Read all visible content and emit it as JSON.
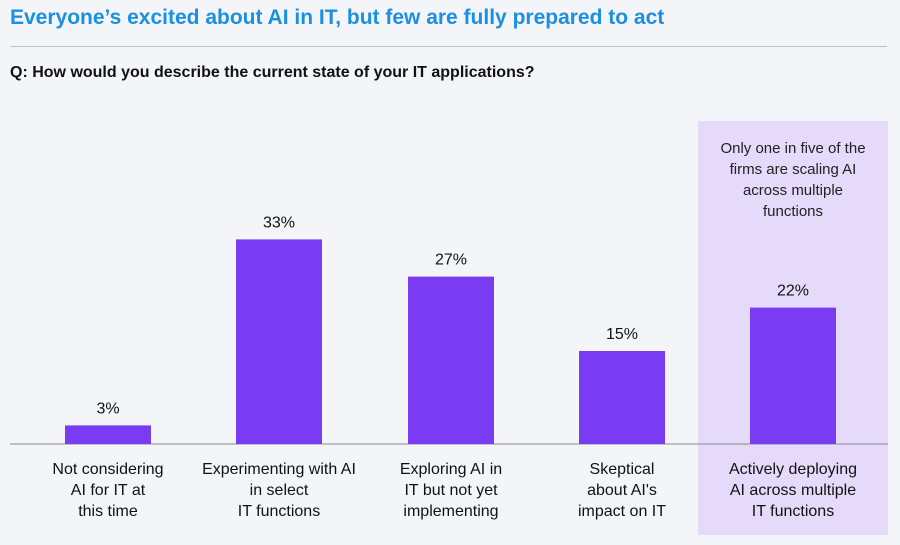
{
  "header": {
    "title": "Everyone’s excited about AI in IT, but few are fully prepared to act",
    "question": "Q: How would you describe the current state of your IT applications?"
  },
  "colors": {
    "title": "#1b8fe0",
    "bar": "#7a3cf2",
    "highlight": "#e6dafb",
    "baseline": "#8a8a8a"
  },
  "chart_data": {
    "type": "bar",
    "categories": [
      [
        "Not considering",
        "AI for IT at",
        "this time"
      ],
      [
        "Experimenting with AI",
        "in select",
        "IT functions"
      ],
      [
        "Exploring AI in",
        "IT but not yet",
        "implementing"
      ],
      [
        "Skeptical",
        "about AI's",
        "impact on IT"
      ],
      [
        "Actively deploying",
        "AI across multiple",
        "IT functions"
      ]
    ],
    "values": [
      3,
      33,
      27,
      15,
      22
    ],
    "value_labels": [
      "3%",
      "33%",
      "27%",
      "15%",
      "22%"
    ],
    "unit": "%",
    "ylim": [
      0,
      38
    ],
    "highlighted_index": 4,
    "annotation": [
      "Only one in five of the",
      "firms are scaling AI",
      "across multiple",
      "functions"
    ]
  }
}
